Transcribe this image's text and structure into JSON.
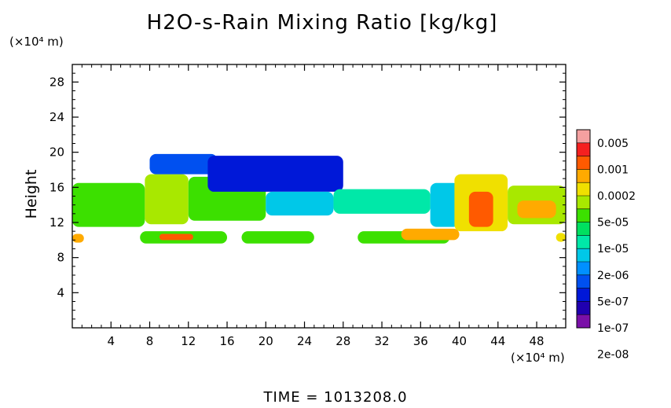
{
  "chart_data": {
    "type": "heatmap",
    "title": "H2O-s-Rain Mixing Ratio [kg/kg]",
    "ylabel": "Height",
    "y_unit_label": "(×10⁴ m)",
    "x_unit_label": "(×10⁴ m)",
    "xlim": [
      0,
      51
    ],
    "ylim": [
      0,
      30
    ],
    "x_ticks": [
      4,
      8,
      12,
      16,
      20,
      24,
      28,
      32,
      36,
      40,
      44,
      48
    ],
    "x_tick_labels": [
      "4",
      "8",
      "12",
      "16",
      "20",
      "24",
      "28",
      "32",
      "36",
      "40",
      "44",
      "48"
    ],
    "y_ticks": [
      4,
      8,
      12,
      16,
      20,
      24,
      28
    ],
    "y_tick_labels": [
      "4",
      "8",
      "12",
      "16",
      "20",
      "24",
      "28"
    ],
    "legend": {
      "placement": "right",
      "labels": [
        "0.005",
        "0.001",
        "0.0002",
        "5e-05",
        "1e-05",
        "2e-06",
        "5e-07",
        "1e-07",
        "2e-08"
      ],
      "colors": [
        "#f4a0a0",
        "#f52020",
        "#ff5a00",
        "#ffaa00",
        "#f0e000",
        "#a8e800",
        "#3ce000",
        "#00e060",
        "#00e8a8",
        "#00c8e8",
        "#0090ff",
        "#0050f0",
        "#0018d8",
        "#2000b0",
        "#7a10a8"
      ]
    },
    "regions": [
      {
        "x0": 0,
        "x1": 7.5,
        "y0": 11.5,
        "y1": 16.5,
        "level": 6
      },
      {
        "x0": 7.5,
        "x1": 12,
        "y0": 11.8,
        "y1": 17.5,
        "level": 5
      },
      {
        "x0": 8,
        "x1": 15,
        "y0": 17.5,
        "y1": 19.8,
        "level": 11
      },
      {
        "x0": 12,
        "x1": 20,
        "y0": 12.2,
        "y1": 17.2,
        "level": 6
      },
      {
        "x0": 14,
        "x1": 28,
        "y0": 15.5,
        "y1": 19.6,
        "level": 12
      },
      {
        "x0": 20,
        "x1": 27,
        "y0": 12.8,
        "y1": 15.5,
        "level": 9
      },
      {
        "x0": 27,
        "x1": 37,
        "y0": 13.0,
        "y1": 15.8,
        "level": 8
      },
      {
        "x0": 37,
        "x1": 40,
        "y0": 11.5,
        "y1": 16.5,
        "level": 9
      },
      {
        "x0": 39.5,
        "x1": 45,
        "y0": 11.0,
        "y1": 17.5,
        "level": 4
      },
      {
        "x0": 41,
        "x1": 43.5,
        "y0": 11.5,
        "y1": 15.5,
        "level": 2
      },
      {
        "x0": 45,
        "x1": 51,
        "y0": 11.8,
        "y1": 16.2,
        "level": 5
      },
      {
        "x0": 46,
        "x1": 50,
        "y0": 12.5,
        "y1": 14.5,
        "level": 3
      },
      {
        "x0": 0,
        "x1": 1.2,
        "y0": 9.7,
        "y1": 10.7,
        "level": 3
      },
      {
        "x0": 7,
        "x1": 16,
        "y0": 9.6,
        "y1": 11.0,
        "level": 6
      },
      {
        "x0": 9,
        "x1": 12.5,
        "y0": 10.0,
        "y1": 10.7,
        "level": 2
      },
      {
        "x0": 17.5,
        "x1": 25,
        "y0": 9.6,
        "y1": 11.0,
        "level": 6
      },
      {
        "x0": 29.5,
        "x1": 39,
        "y0": 9.6,
        "y1": 11.0,
        "level": 6
      },
      {
        "x0": 34,
        "x1": 40,
        "y0": 10.0,
        "y1": 11.3,
        "level": 3
      },
      {
        "x0": 50,
        "x1": 51,
        "y0": 9.8,
        "y1": 10.8,
        "level": 4
      }
    ]
  },
  "time_label": "TIME  =  1013208.0"
}
